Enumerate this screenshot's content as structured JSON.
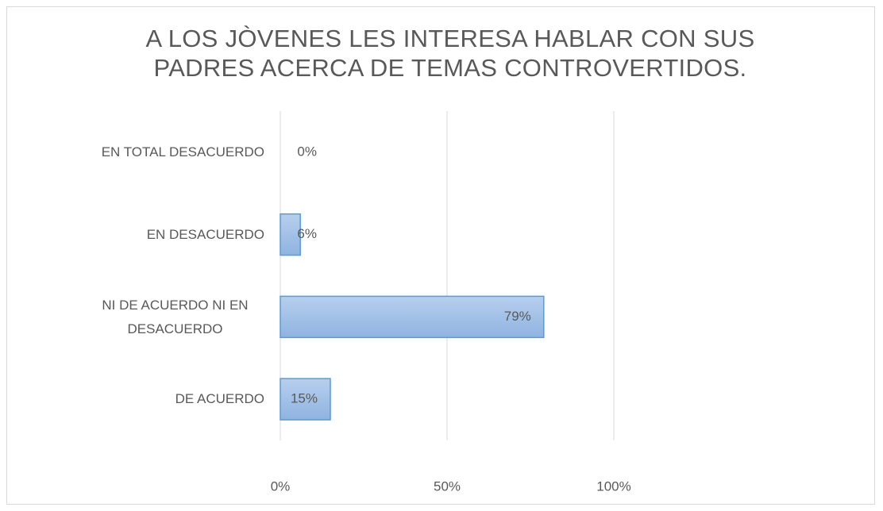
{
  "chart_data": {
    "type": "bar",
    "orientation": "horizontal",
    "title": "A LOS JÒVENES LES INTERESA HABLAR CON SUS PADRES ACERCA DE TEMAS CONTROVERTIDOS.",
    "categories": [
      "EN TOTAL DESACUERDO",
      "EN DESACUERDO",
      "NI DE ACUERDO NI EN DESACUERDO",
      "DE ACUERDO"
    ],
    "values": [
      0,
      6,
      79,
      15
    ],
    "value_labels": [
      "0%",
      "6%",
      "79%",
      "15%"
    ],
    "color": "#9dbde6",
    "xlim": [
      0,
      100
    ],
    "xticks": [
      {
        "value": 0,
        "label": "0%"
      },
      {
        "value": 50,
        "label": "50%"
      },
      {
        "value": 100,
        "label": "100%"
      }
    ],
    "grid": true
  }
}
